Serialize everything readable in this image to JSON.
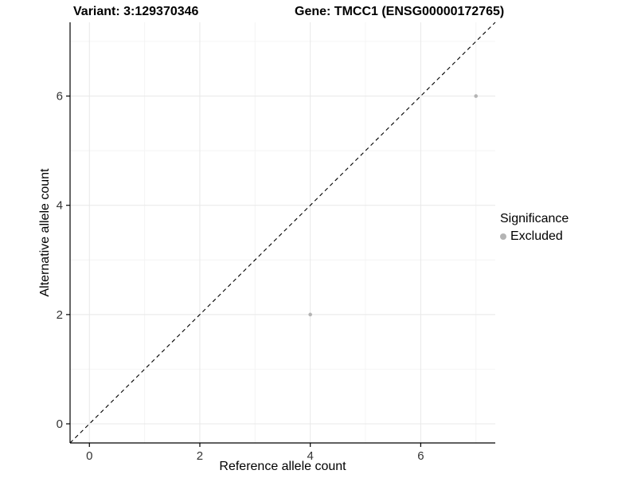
{
  "titles": {
    "variant": "Variant: 3:129370346",
    "gene": "Gene: TMCC1 (ENSG00000172765)"
  },
  "chart_data": {
    "type": "scatter",
    "title_left": "Variant: 3:129370346",
    "title_right": "Gene: TMCC1 (ENSG00000172765)",
    "xlabel": "Reference allele count",
    "ylabel": "Alternative allele count",
    "xlim": [
      -0.35,
      7.35
    ],
    "ylim": [
      -0.35,
      7.35
    ],
    "xticks": [
      0,
      2,
      4,
      6
    ],
    "yticks": [
      0,
      2,
      4,
      6
    ],
    "x_minor_ticks": [
      1,
      3,
      5,
      7
    ],
    "y_minor_ticks": [
      1,
      3,
      5,
      7
    ],
    "grid": true,
    "series": [
      {
        "name": "Excluded",
        "color": "#b4b4b4",
        "points": [
          [
            4,
            2
          ],
          [
            7,
            6
          ]
        ]
      }
    ],
    "abline": {
      "slope": 1,
      "intercept": 0,
      "style": "dashed",
      "color": "#000000"
    },
    "legend": {
      "title": "Significance",
      "position": "right",
      "items": [
        {
          "label": "Excluded",
          "color": "#b4b4b4"
        }
      ]
    },
    "style": {
      "grid_major": "#e8e8e8",
      "grid_minor": "#f4f4f4",
      "axis_line": "#000000",
      "tick_text": "#333333"
    }
  }
}
